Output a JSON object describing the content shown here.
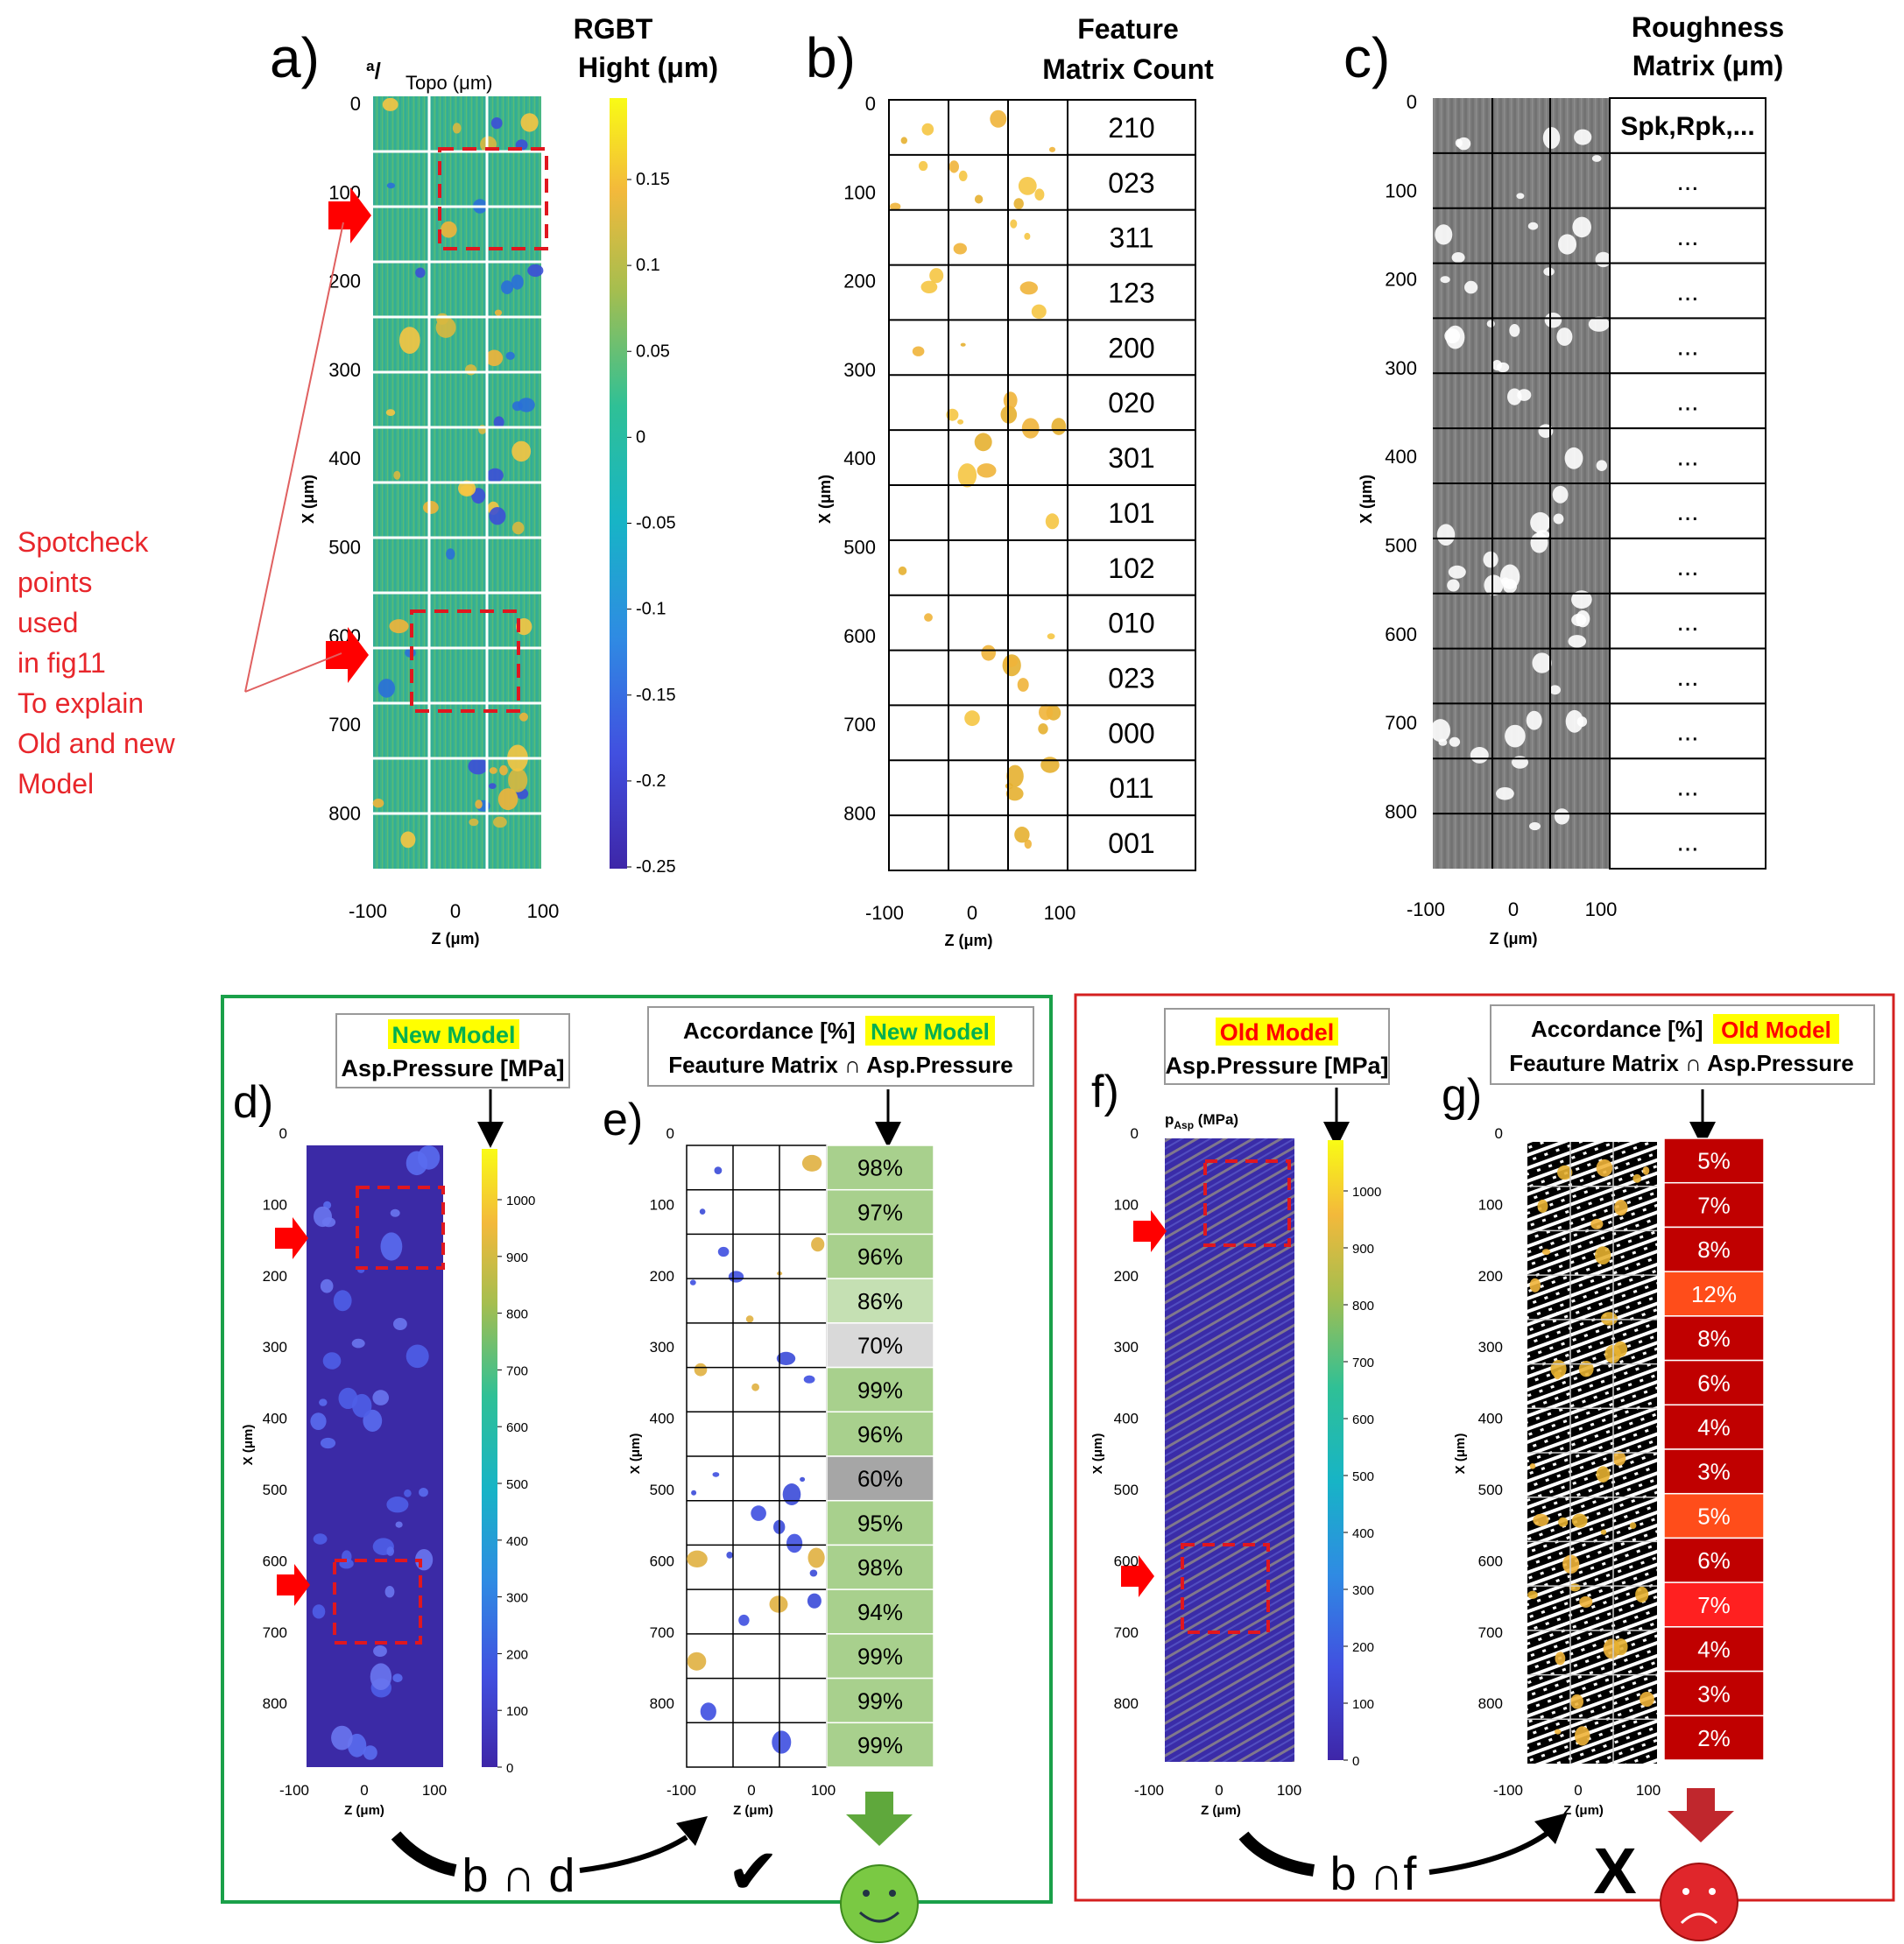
{
  "panels": {
    "a": {
      "label": "a)",
      "title_line1": "RGBT",
      "title_line2": "Hight (μm)",
      "plot_title": "Topo (μm)",
      "artifact_text": "ª/",
      "colorbar_ticks": [
        "0.15",
        "0.1",
        "0.05",
        "0",
        "-0.05",
        "-0.1",
        "-0.15",
        "-0.2",
        "-0.25"
      ],
      "spotcheck_note": [
        "Spotcheck",
        "points",
        "used",
        "in fig11",
        "To explain",
        "Old and new",
        "Model"
      ]
    },
    "b": {
      "label": "b)",
      "title_line1": "Feature",
      "title_line2": "Matrix Count",
      "counts": [
        "210",
        "023",
        "311",
        "123",
        "200",
        "020",
        "301",
        "101",
        "102",
        "010",
        "023",
        "000",
        "011",
        "001"
      ]
    },
    "c": {
      "label": "c)",
      "title_line1": "Roughness",
      "title_line2": "Matrix (μm)",
      "cells": [
        "Spk,Rpk,...",
        "...",
        "...",
        "...",
        "...",
        "...",
        "...",
        "...",
        "...",
        "...",
        "...",
        "...",
        "...",
        "..."
      ]
    },
    "d": {
      "label": "d)",
      "title_highlight": "New Model",
      "title_line2": "Asp.Pressure [MPa]",
      "colorbar_ticks": [
        "1000",
        "900",
        "800",
        "700",
        "600",
        "500",
        "400",
        "300",
        "200",
        "100",
        "0"
      ]
    },
    "e": {
      "label": "e)",
      "title_prefix": "Accordance [%]",
      "title_highlight": "New Model",
      "title_line2": "Feauture Matrix ∩  Asp.Pressure",
      "percents": [
        "98%",
        "97%",
        "96%",
        "86%",
        "70%",
        "99%",
        "96%",
        "60%",
        "95%",
        "98%",
        "94%",
        "99%",
        "99%",
        "99%"
      ],
      "cell_colors": [
        "#a8d08d",
        "#a8d08d",
        "#a8d08d",
        "#c5e0b3",
        "#d9d9d9",
        "#a8d08d",
        "#a8d08d",
        "#a6a6a6",
        "#a8d08d",
        "#a8d08d",
        "#a8d08d",
        "#a8d08d",
        "#a8d08d",
        "#a8d08d"
      ],
      "formula": "b ∩ d",
      "check_mark": "✔"
    },
    "f": {
      "label": "f)",
      "title_highlight": "Old Model",
      "title_line2": "Asp.Pressure [MPa]",
      "plot_title": "p",
      "plot_title_sub": "Asp",
      "plot_title_unit": " (MPa)",
      "colorbar_ticks": [
        "1000",
        "900",
        "800",
        "700",
        "600",
        "500",
        "400",
        "300",
        "200",
        "100",
        "0"
      ]
    },
    "g": {
      "label": "g)",
      "title_prefix": "Accordance [%]",
      "title_highlight": "Old Model",
      "title_line2": "Feauture Matrix ∩  Asp.Pressure",
      "percents": [
        "5%",
        "7%",
        "8%",
        "12%",
        "8%",
        "6%",
        "4%",
        "3%",
        "5%",
        "6%",
        "7%",
        "4%",
        "3%",
        "2%"
      ],
      "cell_colors": [
        "#c00000",
        "#c00000",
        "#c00000",
        "#ff4d1a",
        "#c00000",
        "#c00000",
        "#c00000",
        "#c00000",
        "#ff4d1a",
        "#c00000",
        "#ff2020",
        "#c00000",
        "#c00000",
        "#c00000"
      ],
      "formula": "b ∩f",
      "cross_mark": "X"
    }
  },
  "axes": {
    "x_label": "X (μm)",
    "z_label": "Z (μm)",
    "y_ticks": [
      "0",
      "100",
      "200",
      "300",
      "400",
      "500",
      "600",
      "700",
      "800"
    ],
    "z_ticks": [
      "-100",
      "0",
      "100"
    ]
  },
  "colors": {
    "parula_low": "#3e26a8",
    "parula_high": "#f9fb15",
    "new_model_highlight": "#ffff00",
    "new_model_text": "#00b050",
    "old_model_highlight": "#ffff00",
    "old_model_text": "#ff0000",
    "green_frame": "#1aa049",
    "red_frame": "#d42020",
    "arrow_red": "#ff0000"
  }
}
